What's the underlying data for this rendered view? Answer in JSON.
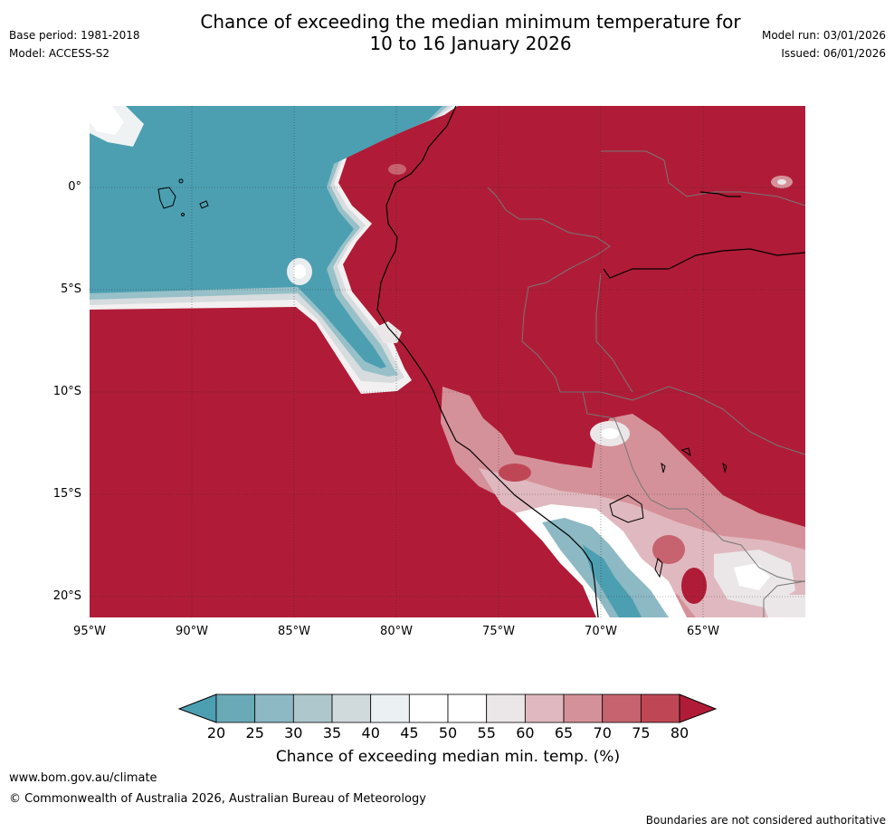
{
  "header": {
    "title_line1": "Chance of exceeding the median minimum temperature for",
    "title_line2": "10 to 16 January 2026",
    "base_period": "Base period: 1981-2018",
    "model": "Model: ACCESS-S2",
    "model_run": "Model run: 03/01/2026",
    "issued": "Issued: 06/01/2026"
  },
  "map": {
    "region": "Western South America and adjacent eastern Pacific",
    "lat_labels": [
      "0°",
      "5°S",
      "10°S",
      "15°S",
      "20°S"
    ],
    "lon_labels": [
      "95°W",
      "90°W",
      "85°W",
      "80°W",
      "75°W",
      "70°W",
      "65°W"
    ]
  },
  "colorbar": {
    "ticks": [
      "20",
      "25",
      "30",
      "35",
      "40",
      "45",
      "50",
      "55",
      "60",
      "65",
      "70",
      "75",
      "80"
    ],
    "colors": {
      "below20": "#4c9fb1",
      "c20_25": "#6aaab7",
      "c25_30": "#8cb9c3",
      "c30_35": "#adc7cc",
      "c35_40": "#d0d9db",
      "c40_45": "#ebf0f2",
      "c45_50": "#ffffff",
      "c50_55": "#ffffff",
      "c55_60": "#ebe7e9",
      "c60_65": "#dfb9bf",
      "c65_70": "#d59199",
      "c70_75": "#c6636f",
      "c75_80": "#bf4755",
      "above80": "#b01c37"
    },
    "label": "Chance of exceeding median min. temp. (%)"
  },
  "footer": {
    "website": "www.bom.gov.au/climate",
    "copyright": "© Commonwealth of Australia 2026, Australian Bureau of Meteorology",
    "disclaimer": "Boundaries are not considered authoritative"
  }
}
